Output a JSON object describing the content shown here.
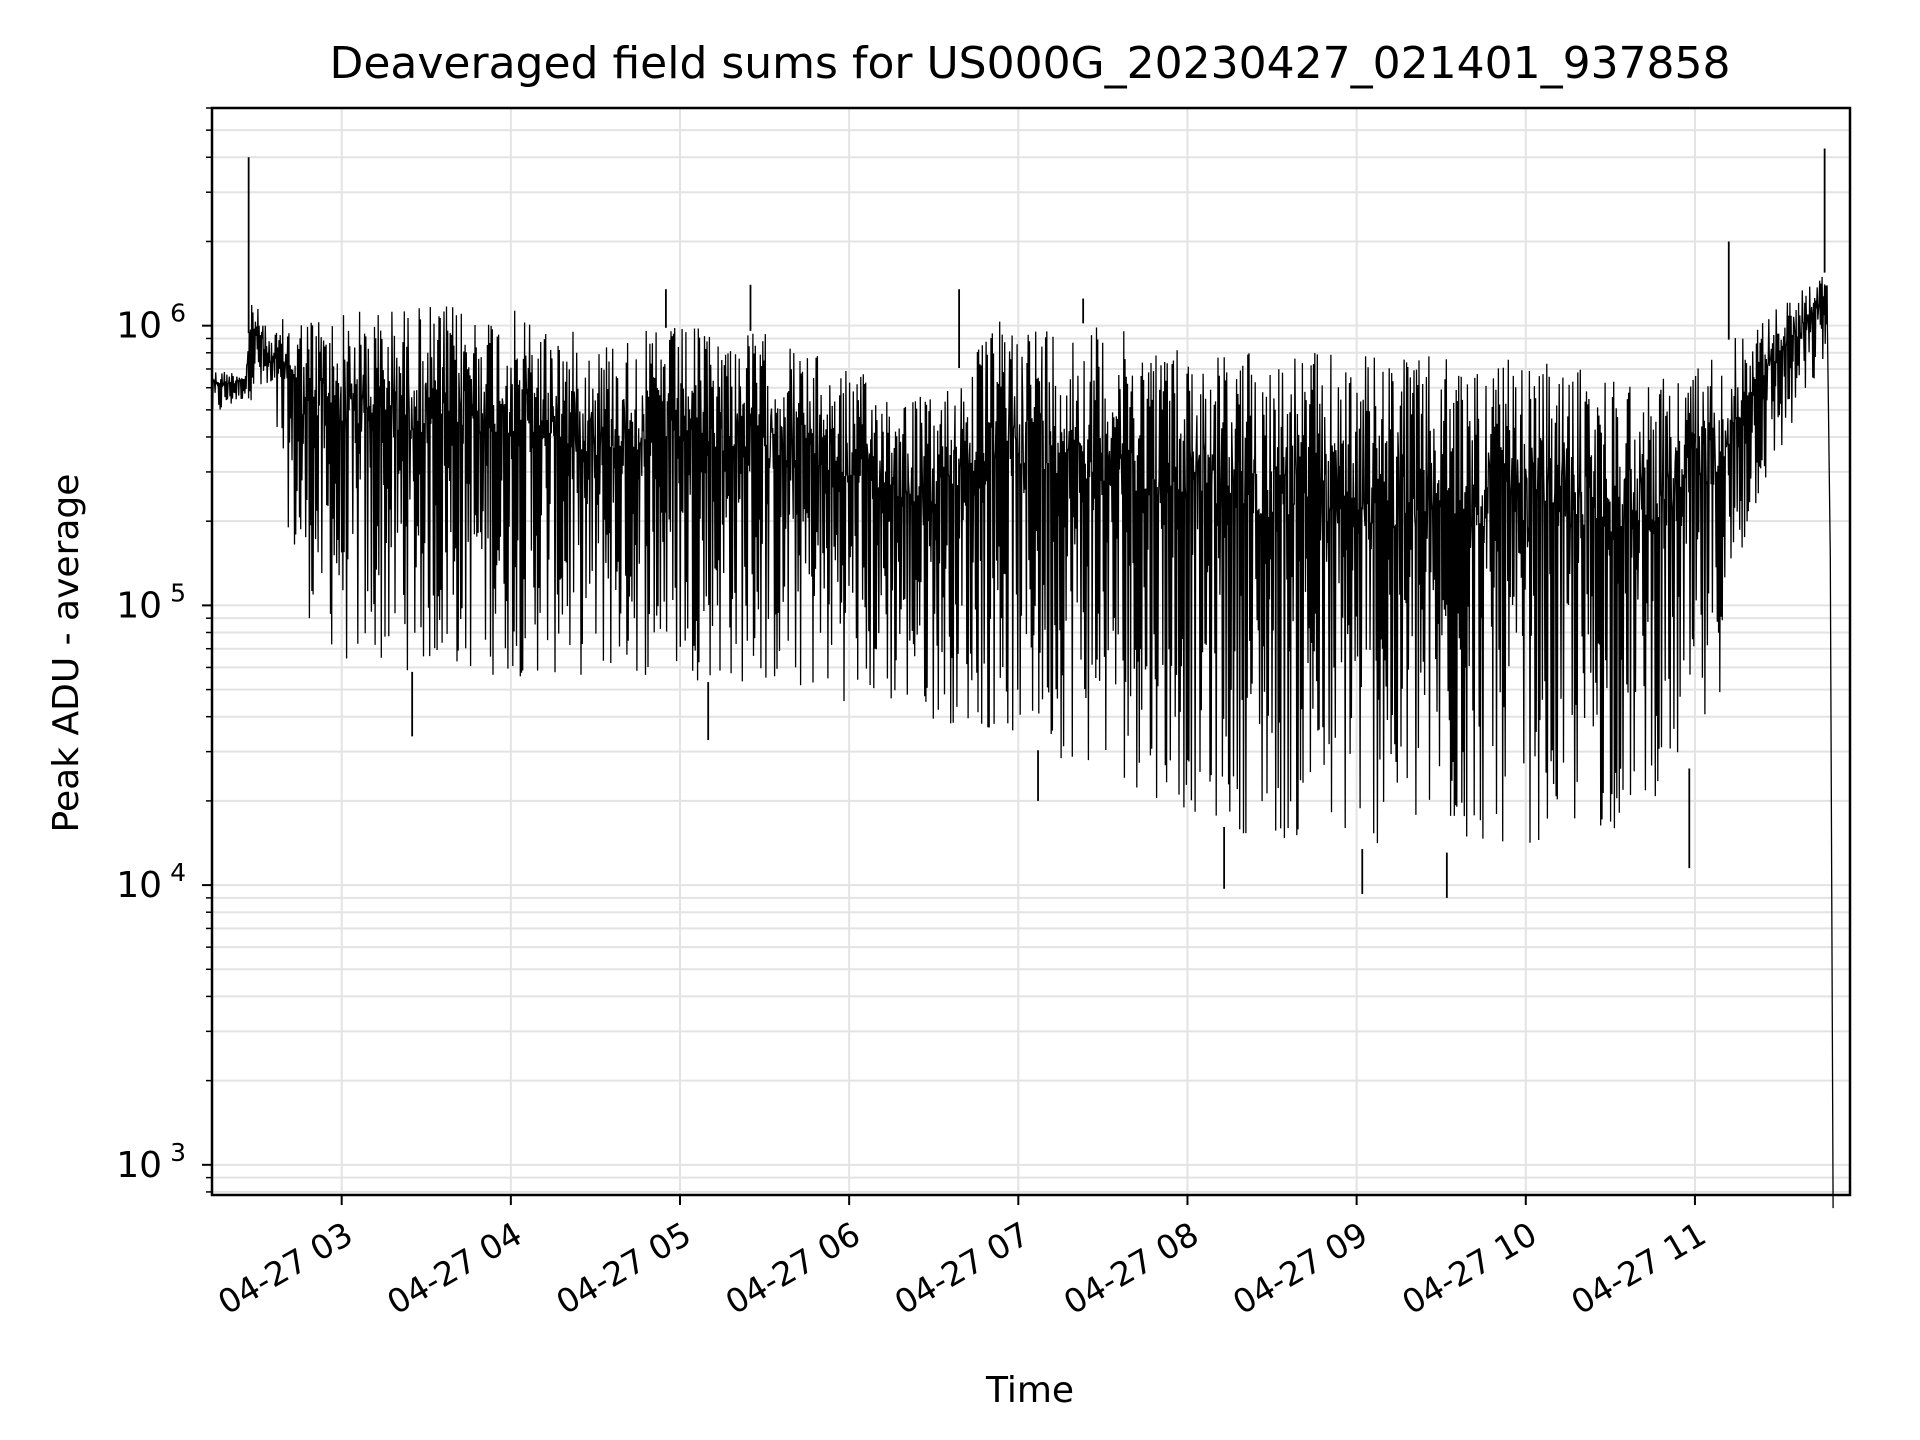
{
  "chart_data": {
    "type": "line",
    "title": "Deaveraged field sums for US000G_20230427_021401_937858",
    "xlabel": "Time",
    "ylabel": "Peak ADU - average",
    "yscale": "log",
    "ylim": [
      780,
      6000000
    ],
    "xlim": [
      "2023-04-27 02:14",
      "2023-04-27 11:55"
    ],
    "grid": true,
    "line_color": "#000000",
    "grid_color": "#e3e3e3",
    "x_ticks": [
      {
        "value": "2023-04-27 03:00",
        "label": "04-27 03"
      },
      {
        "value": "2023-04-27 04:00",
        "label": "04-27 04"
      },
      {
        "value": "2023-04-27 05:00",
        "label": "04-27 05"
      },
      {
        "value": "2023-04-27 06:00",
        "label": "04-27 06"
      },
      {
        "value": "2023-04-27 07:00",
        "label": "04-27 07"
      },
      {
        "value": "2023-04-27 08:00",
        "label": "04-27 08"
      },
      {
        "value": "2023-04-27 09:00",
        "label": "04-27 09"
      },
      {
        "value": "2023-04-27 10:00",
        "label": "04-27 10"
      },
      {
        "value": "2023-04-27 11:00",
        "label": "04-27 11"
      }
    ],
    "y_ticks": [
      {
        "value": 1000,
        "base": "10",
        "exp": "3"
      },
      {
        "value": 10000,
        "base": "10",
        "exp": "4"
      },
      {
        "value": 100000,
        "base": "10",
        "exp": "5"
      },
      {
        "value": 1000000,
        "base": "10",
        "exp": "6"
      }
    ],
    "series": [
      {
        "upper_envelope": [
          [
            "2023-04-27 02:14",
            700000
          ],
          [
            "2023-04-27 02:26",
            680000
          ],
          [
            "2023-04-27 02:28",
            1300000
          ],
          [
            "2023-04-27 02:35",
            900000
          ],
          [
            "2023-04-27 02:40",
            1100000
          ],
          [
            "2023-04-27 03:30",
            1200000
          ],
          [
            "2023-04-27 04:00",
            1150000
          ],
          [
            "2023-04-27 04:30",
            900000
          ],
          [
            "2023-04-27 05:00",
            1000000
          ],
          [
            "2023-04-27 05:30",
            950000
          ],
          [
            "2023-04-27 06:00",
            700000
          ],
          [
            "2023-04-27 06:30",
            550000
          ],
          [
            "2023-04-27 06:55",
            1100000
          ],
          [
            "2023-04-27 07:30",
            1000000
          ],
          [
            "2023-04-27 08:00",
            850000
          ],
          [
            "2023-04-27 09:00",
            800000
          ],
          [
            "2023-04-27 10:00",
            750000
          ],
          [
            "2023-04-27 10:50",
            650000
          ],
          [
            "2023-04-27 11:20",
            1000000
          ],
          [
            "2023-04-27 11:48",
            1600000
          ]
        ],
        "lower_envelope": [
          [
            "2023-04-27 02:14",
            450000
          ],
          [
            "2023-04-27 02:26",
            550000
          ],
          [
            "2023-04-27 02:35",
            500000
          ],
          [
            "2023-04-27 02:45",
            100000
          ],
          [
            "2023-04-27 03:00",
            60000
          ],
          [
            "2023-04-27 04:00",
            55000
          ],
          [
            "2023-04-27 05:00",
            55000
          ],
          [
            "2023-04-27 06:00",
            45000
          ],
          [
            "2023-04-27 06:50",
            35000
          ],
          [
            "2023-04-27 07:30",
            25000
          ],
          [
            "2023-04-27 08:00",
            18000
          ],
          [
            "2023-04-27 08:30",
            14000
          ],
          [
            "2023-04-27 09:30",
            13000
          ],
          [
            "2023-04-27 10:30",
            15000
          ],
          [
            "2023-04-27 11:05",
            30000
          ],
          [
            "2023-04-27 11:20",
            200000
          ],
          [
            "2023-04-27 11:48",
            800000
          ]
        ],
        "spikes": [
          [
            "2023-04-27 02:27",
            4000000
          ],
          [
            "2023-04-27 04:55",
            1350000
          ],
          [
            "2023-04-27 05:25",
            1400000
          ],
          [
            "2023-04-27 06:39",
            1350000
          ],
          [
            "2023-04-27 07:23",
            1250000
          ],
          [
            "2023-04-27 11:12",
            2000000
          ],
          [
            "2023-04-27 11:46",
            4300000
          ]
        ],
        "dips": [
          [
            "2023-04-27 03:25",
            34000
          ],
          [
            "2023-04-27 05:10",
            33000
          ],
          [
            "2023-04-27 07:07",
            20000
          ],
          [
            "2023-04-27 08:13",
            9700
          ],
          [
            "2023-04-27 09:02",
            9300
          ],
          [
            "2023-04-27 09:32",
            9000
          ],
          [
            "2023-04-27 10:58",
            11500
          ]
        ],
        "end_drop": [
          [
            "2023-04-27 11:47",
            1000000
          ],
          [
            "2023-04-27 11:48",
            150000
          ],
          [
            "2023-04-27 11:49",
            700
          ]
        ]
      }
    ]
  }
}
